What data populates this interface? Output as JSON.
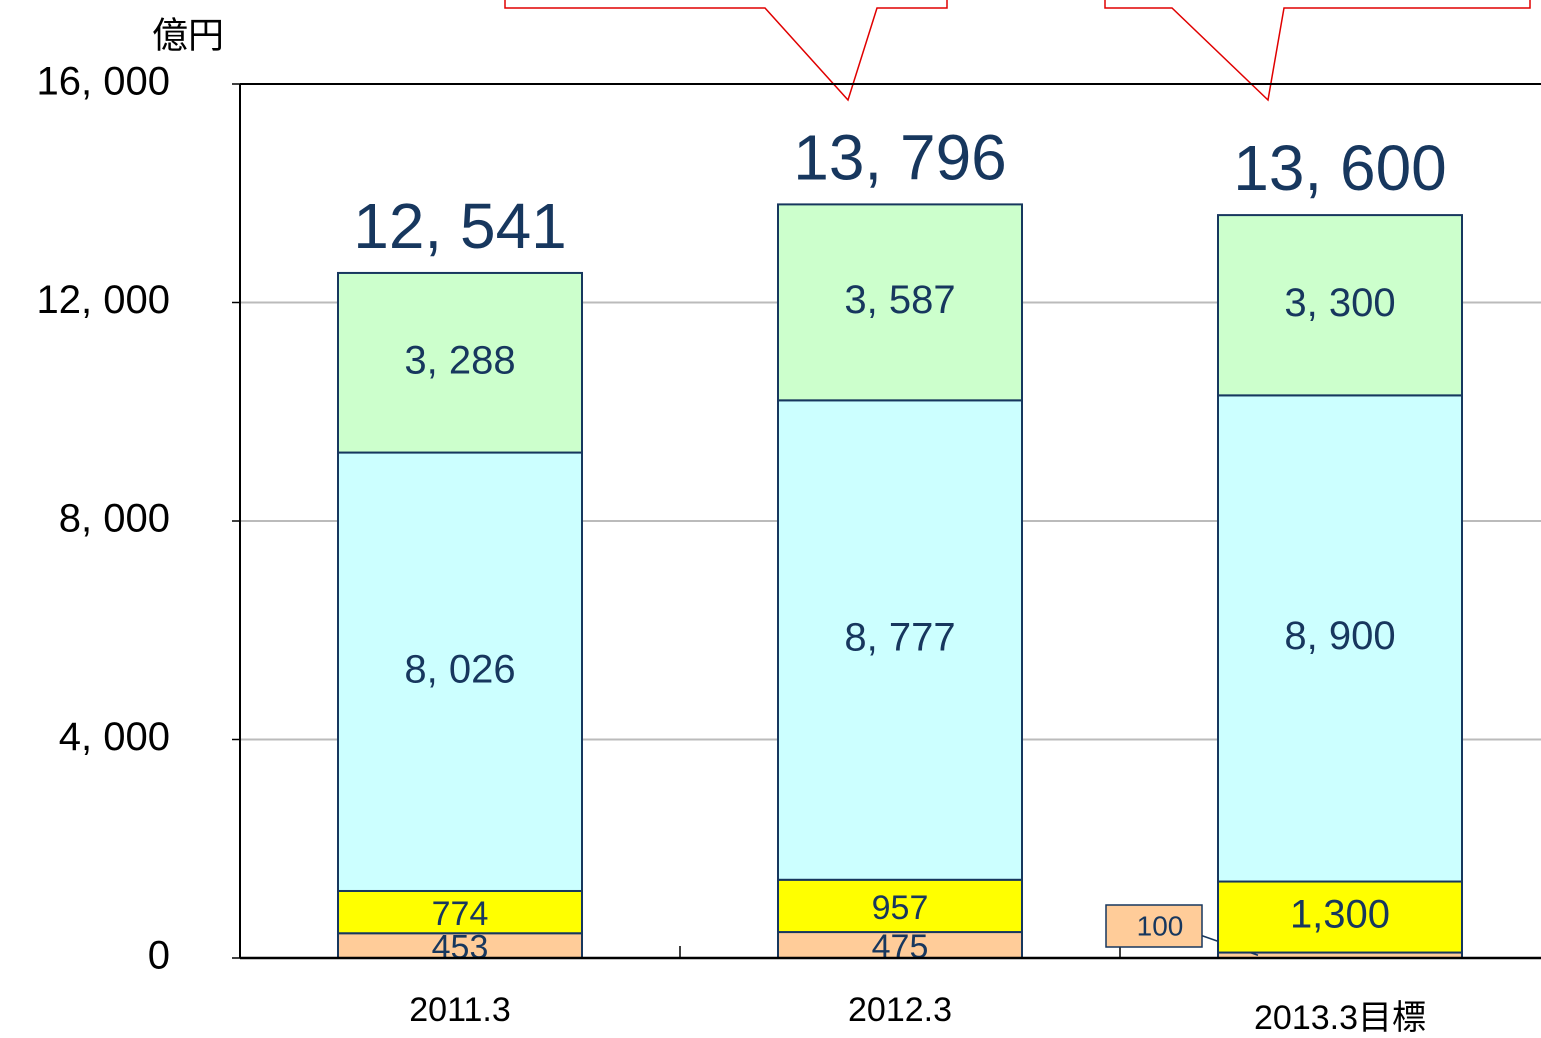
{
  "chart_data": {
    "type": "stacked_bar",
    "y_axis_label": "億円",
    "categories": [
      "2011.3",
      "2012.3",
      "2013.3目標"
    ],
    "series": [
      {
        "color": "#ffcc99",
        "values": [
          453,
          475,
          100
        ],
        "value_labels": [
          "453",
          "475",
          "100"
        ]
      },
      {
        "color": "#ffff00",
        "values": [
          774,
          957,
          1300
        ],
        "value_labels": [
          "774",
          "957",
          "1,300"
        ]
      },
      {
        "color": "#ccffff",
        "values": [
          8026,
          8777,
          8900
        ],
        "value_labels": [
          "8, 026",
          "8, 777",
          "8, 900"
        ]
      },
      {
        "color": "#ccffcc",
        "values": [
          3288,
          3587,
          3300
        ],
        "value_labels": [
          "3, 288",
          "3, 587",
          "3, 300"
        ]
      }
    ],
    "totals": [
      12541,
      13796,
      13600
    ],
    "total_labels": [
      "12, 541",
      "13, 796",
      "13, 600"
    ],
    "ylim": [
      0,
      16000
    ],
    "yticks": [
      0,
      {
        "value": 4000,
        "label": "4, 000"
      },
      {
        "value": 8000,
        "label": "8, 000"
      },
      {
        "value": 12000,
        "label": "12, 000"
      },
      {
        "value": 16000,
        "label": "16, 000"
      }
    ],
    "grid": true
  }
}
